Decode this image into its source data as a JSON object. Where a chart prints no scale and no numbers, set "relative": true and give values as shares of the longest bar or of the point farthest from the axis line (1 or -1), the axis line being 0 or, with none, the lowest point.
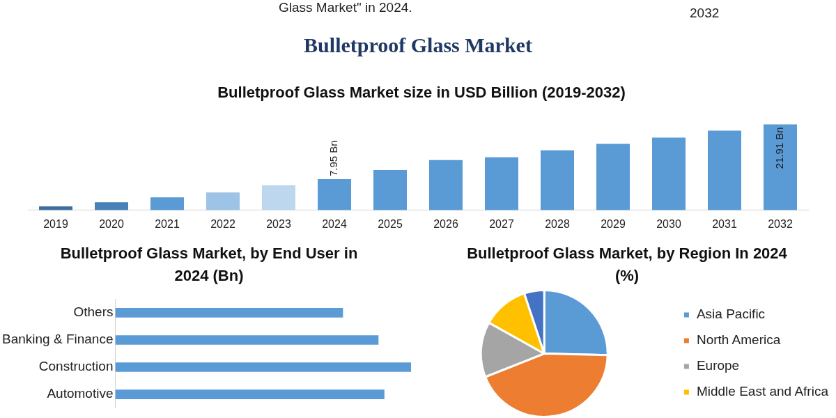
{
  "chart_data": [
    {
      "type": "other",
      "title": "Bulletproof Glass Market",
      "annotations": [
        "Glass Market\" in 2024.",
        "2032"
      ]
    },
    {
      "type": "bar",
      "title": "Bulletproof Glass Market size in USD Billion (2019-2032)",
      "categories": [
        "2019",
        "2020",
        "2021",
        "2022",
        "2023",
        "2024",
        "2025",
        "2026",
        "2027",
        "2028",
        "2029",
        "2030",
        "2031",
        "2032"
      ],
      "values": [
        0.97,
        2.04,
        3.29,
        4.55,
        6.34,
        7.95,
        10.27,
        12.78,
        13.5,
        15.29,
        16.9,
        18.51,
        20.3,
        21.91
      ],
      "tick_labels": "x",
      "colors": [
        "#3e6f9e",
        "#4a80b8",
        "#5b9bd5",
        "#9dc3e6",
        "#bdd7ee",
        "#5b9bd5",
        "#5b9bd5",
        "#5b9bd5",
        "#5b9bd5",
        "#5b9bd5",
        "#5b9bd5",
        "#5b9bd5",
        "#5b9bd5",
        "#5b9bd5"
      ],
      "value_labels": [
        null,
        null,
        null,
        null,
        null,
        "7.95 Bn",
        null,
        null,
        null,
        null,
        null,
        null,
        null,
        "21.91 Bn"
      ]
    },
    {
      "type": "bar",
      "orientation": "horizontal",
      "title": "Bulletproof Glass Market, by End User in 2024 (Bn)",
      "categories": [
        "Others",
        "Banking & Finance",
        "Construction",
        "Automotive"
      ],
      "values": [
        0.77,
        0.89,
        1,
        0.91
      ],
      "color": "#5b9bd5",
      "relative": true
    },
    {
      "type": "pie",
      "title": "Bulletproof Glass Market, by Region In 2024 (%)",
      "categories": [
        "Asia Pacific",
        "North America",
        "Europe",
        "Middle East and Africa",
        null
      ],
      "values": [
        25.4,
        43.6,
        14.1,
        11.8,
        5.1
      ],
      "colors": [
        "#5b9bd5",
        "#ed7d31",
        "#a5a5a5",
        "#ffc000",
        "#4472c4"
      ],
      "legend": "right"
    }
  ]
}
